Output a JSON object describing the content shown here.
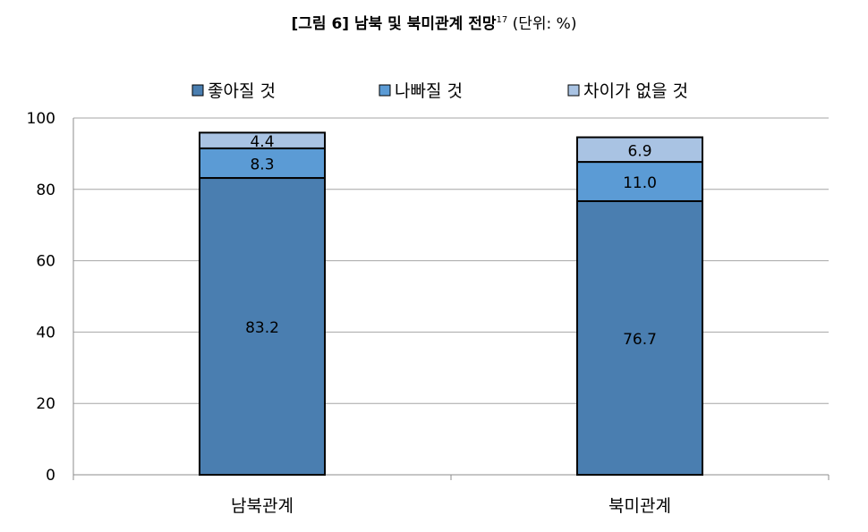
{
  "title": {
    "main": "[그림 6] 남북 및 북미관계 전망",
    "footnote": "17",
    "unit": "(단위: %)"
  },
  "chart_data": {
    "type": "bar",
    "stacked": true,
    "categories": [
      "남북관계",
      "북미관계"
    ],
    "series": [
      {
        "name": "좋아질 것",
        "values": [
          83.2,
          76.7
        ],
        "color": "#4a7eb0"
      },
      {
        "name": "나빠질 것",
        "values": [
          8.3,
          11.0
        ],
        "color": "#5b9bd5"
      },
      {
        "name": "차이가 없을 것",
        "values": [
          4.4,
          6.9
        ],
        "color": "#a9c3e3"
      }
    ],
    "data_labels": [
      [
        "83.2",
        "8.3",
        "4.4"
      ],
      [
        "76.7",
        "11.0",
        "6.9"
      ]
    ],
    "ylim": [
      0,
      100
    ],
    "yticks": [
      0,
      20,
      40,
      60,
      80,
      100
    ],
    "grid": true,
    "legend": "top"
  }
}
